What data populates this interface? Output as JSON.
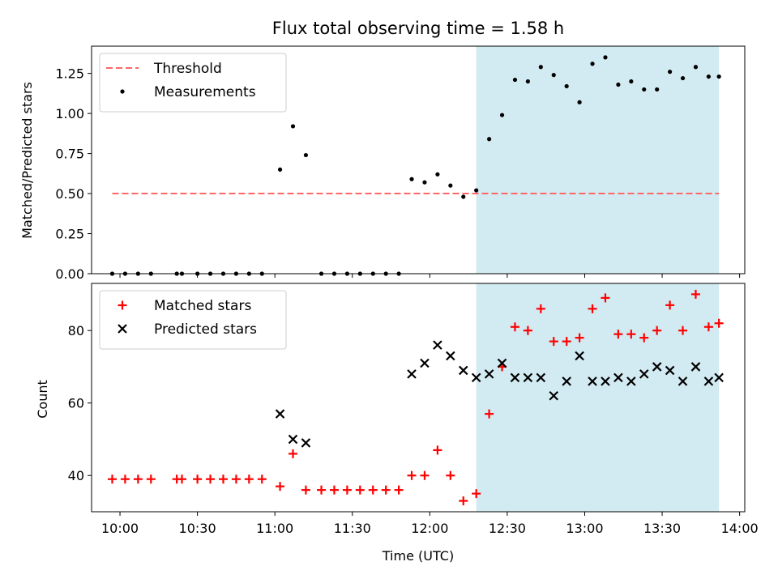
{
  "chart_data": [
    {
      "type": "scatter",
      "title": "Flux total observing time = 1.58 h",
      "ylabel": "Matched/Predicted stars",
      "xlabel": "",
      "xlim": [
        "09:49",
        "14:02"
      ],
      "ylim": [
        0,
        1.42
      ],
      "yticks": [
        0,
        0.25,
        0.5,
        0.75,
        1.0,
        1.25
      ],
      "ytick_labels": [
        "0.00",
        "0.25",
        "0.50",
        "0.75",
        "1.00",
        "1.25"
      ],
      "shaded_span": [
        "12:18",
        "13:52"
      ],
      "shaded_color": "#add8e6",
      "legend_position": "upper left",
      "threshold": {
        "name": "Threshold",
        "y": 0.5,
        "x_start": "09:57",
        "x_end": "13:52",
        "color": "#ff6666",
        "style": "dashed"
      },
      "series": [
        {
          "name": "Measurements",
          "color": "#000000",
          "marker": "dot",
          "points": [
            [
              "09:57",
              0
            ],
            [
              "10:02",
              0
            ],
            [
              "10:07",
              0
            ],
            [
              "10:12",
              0
            ],
            [
              "10:22",
              0
            ],
            [
              "10:24",
              0
            ],
            [
              "10:30",
              0
            ],
            [
              "10:35",
              0
            ],
            [
              "10:40",
              0
            ],
            [
              "10:45",
              0
            ],
            [
              "10:50",
              0
            ],
            [
              "10:55",
              0
            ],
            [
              "11:02",
              0.65
            ],
            [
              "11:07",
              0.92
            ],
            [
              "11:12",
              0.74
            ],
            [
              "11:18",
              0
            ],
            [
              "11:23",
              0
            ],
            [
              "11:28",
              0
            ],
            [
              "11:33",
              0
            ],
            [
              "11:38",
              0
            ],
            [
              "11:43",
              0
            ],
            [
              "11:48",
              0
            ],
            [
              "11:53",
              0.59
            ],
            [
              "11:58",
              0.57
            ],
            [
              "12:03",
              0.62
            ],
            [
              "12:08",
              0.55
            ],
            [
              "12:13",
              0.48
            ],
            [
              "12:18",
              0.52
            ],
            [
              "12:23",
              0.84
            ],
            [
              "12:28",
              0.99
            ],
            [
              "12:33",
              1.21
            ],
            [
              "12:38",
              1.2
            ],
            [
              "12:43",
              1.29
            ],
            [
              "12:48",
              1.24
            ],
            [
              "12:53",
              1.17
            ],
            [
              "12:58",
              1.07
            ],
            [
              "13:03",
              1.31
            ],
            [
              "13:08",
              1.35
            ],
            [
              "13:13",
              1.18
            ],
            [
              "13:18",
              1.2
            ],
            [
              "13:23",
              1.15
            ],
            [
              "13:28",
              1.15
            ],
            [
              "13:33",
              1.26
            ],
            [
              "13:38",
              1.22
            ],
            [
              "13:43",
              1.29
            ],
            [
              "13:48",
              1.23
            ],
            [
              "13:52",
              1.23
            ]
          ]
        }
      ]
    },
    {
      "type": "scatter",
      "title": "",
      "xlabel": "Time (UTC)",
      "ylabel": "Count",
      "xlim": [
        "09:49",
        "14:02"
      ],
      "ylim": [
        30,
        93
      ],
      "yticks": [
        40,
        60,
        80
      ],
      "ytick_labels": [
        "40",
        "60",
        "80"
      ],
      "xticks": [
        "10:00",
        "10:30",
        "11:00",
        "11:30",
        "12:00",
        "12:30",
        "13:00",
        "13:30",
        "14:00"
      ],
      "shaded_span": [
        "12:18",
        "13:52"
      ],
      "shaded_color": "#add8e6",
      "legend_position": "upper left",
      "series": [
        {
          "name": "Matched stars",
          "color": "#ff0000",
          "marker": "plus",
          "points": [
            [
              "09:57",
              39
            ],
            [
              "10:02",
              39
            ],
            [
              "10:07",
              39
            ],
            [
              "10:12",
              39
            ],
            [
              "10:22",
              39
            ],
            [
              "10:24",
              39
            ],
            [
              "10:30",
              39
            ],
            [
              "10:35",
              39
            ],
            [
              "10:40",
              39
            ],
            [
              "10:45",
              39
            ],
            [
              "10:50",
              39
            ],
            [
              "10:55",
              39
            ],
            [
              "11:02",
              37
            ],
            [
              "11:07",
              46
            ],
            [
              "11:12",
              36
            ],
            [
              "11:18",
              36
            ],
            [
              "11:23",
              36
            ],
            [
              "11:28",
              36
            ],
            [
              "11:33",
              36
            ],
            [
              "11:38",
              36
            ],
            [
              "11:43",
              36
            ],
            [
              "11:48",
              36
            ],
            [
              "11:53",
              40
            ],
            [
              "11:58",
              40
            ],
            [
              "12:03",
              47
            ],
            [
              "12:08",
              40
            ],
            [
              "12:13",
              33
            ],
            [
              "12:18",
              35
            ],
            [
              "12:23",
              57
            ],
            [
              "12:28",
              70
            ],
            [
              "12:33",
              81
            ],
            [
              "12:38",
              80
            ],
            [
              "12:43",
              86
            ],
            [
              "12:48",
              77
            ],
            [
              "12:53",
              77
            ],
            [
              "12:58",
              78
            ],
            [
              "13:03",
              86
            ],
            [
              "13:08",
              89
            ],
            [
              "13:13",
              79
            ],
            [
              "13:18",
              79
            ],
            [
              "13:23",
              78
            ],
            [
              "13:28",
              80
            ],
            [
              "13:33",
              87
            ],
            [
              "13:38",
              80
            ],
            [
              "13:43",
              90
            ],
            [
              "13:48",
              81
            ],
            [
              "13:52",
              82
            ]
          ]
        },
        {
          "name": "Predicted stars",
          "color": "#000000",
          "marker": "x",
          "points": [
            [
              "11:02",
              57
            ],
            [
              "11:07",
              50
            ],
            [
              "11:12",
              49
            ],
            [
              "11:53",
              68
            ],
            [
              "11:58",
              71
            ],
            [
              "12:03",
              76
            ],
            [
              "12:08",
              73
            ],
            [
              "12:13",
              69
            ],
            [
              "12:18",
              67
            ],
            [
              "12:23",
              68
            ],
            [
              "12:28",
              71
            ],
            [
              "12:33",
              67
            ],
            [
              "12:38",
              67
            ],
            [
              "12:43",
              67
            ],
            [
              "12:48",
              62
            ],
            [
              "12:53",
              66
            ],
            [
              "12:58",
              73
            ],
            [
              "13:03",
              66
            ],
            [
              "13:08",
              66
            ],
            [
              "13:13",
              67
            ],
            [
              "13:18",
              66
            ],
            [
              "13:23",
              68
            ],
            [
              "13:28",
              70
            ],
            [
              "13:33",
              69
            ],
            [
              "13:38",
              66
            ],
            [
              "13:43",
              70
            ],
            [
              "13:48",
              66
            ],
            [
              "13:52",
              67
            ]
          ]
        }
      ]
    }
  ]
}
